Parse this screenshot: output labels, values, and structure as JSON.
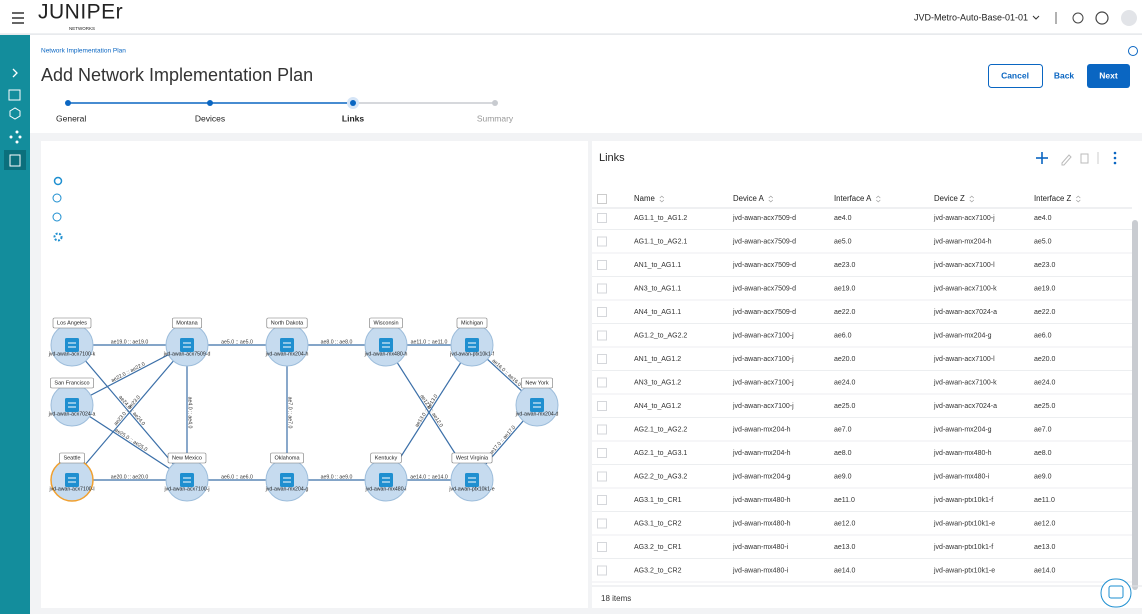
{
  "header": {
    "logo": "JUNIPEr",
    "logo_sub": "NETWORKS",
    "org": "JVD-Metro-Auto-Base-01-01"
  },
  "breadcrumb": "Network Implementation Plan",
  "title": "Add Network Implementation Plan",
  "buttons": {
    "cancel": "Cancel",
    "back": "Back",
    "next": "Next"
  },
  "steps": [
    "General",
    "Devices",
    "Links",
    "Summary"
  ],
  "topology": {
    "nodes": [
      {
        "site": "Los Angeles",
        "device": "jvd-awan-acx7100-k"
      },
      {
        "site": "Montana",
        "device": "jvd-awan-acx7509-d"
      },
      {
        "site": "North Dakota",
        "device": "jvd-awan-mx204-h"
      },
      {
        "site": "Wisconsin",
        "device": "jvd-awan-mx480-h"
      },
      {
        "site": "Michigan",
        "device": "jvd-awan-ptx10k1-f"
      },
      {
        "site": "New York",
        "device": "jvd-awan-mx204-d"
      },
      {
        "site": "San Francisco",
        "device": "jvd-awan-acx7024-a"
      },
      {
        "site": "Seattle",
        "device": "jvd-awan-acx7100-l"
      },
      {
        "site": "New Mexico",
        "device": "jvd-awan-acx7100-j"
      },
      {
        "site": "Oklahoma",
        "device": "jvd-awan-mx204-g"
      },
      {
        "site": "Kentucky",
        "device": "jvd-awan-mx480-i"
      },
      {
        "site": "West Virginia",
        "device": "jvd-awan-ptx10k1-e"
      }
    ],
    "links": [
      {
        "label": "ae19.0 :: ae19.0"
      },
      {
        "label": "ae5.0 :: ae5.0"
      },
      {
        "label": "ae8.0 :: ae8.0"
      },
      {
        "label": "ae11.0 :: ae11.0"
      },
      {
        "label": "ae16.0 :: ae16.0"
      },
      {
        "label": "ae22.0 :: ae22.0"
      },
      {
        "label": "ae23.0 :: ae23.0"
      },
      {
        "label": "ae24.0 :: ae24.0"
      },
      {
        "label": "ae25.0 :: ae25.0"
      },
      {
        "label": "ae4.0 :: ae4.0"
      },
      {
        "label": "ae7.0 :: ae7.0"
      },
      {
        "label": "ae20.0 :: ae20.0"
      },
      {
        "label": "ae6.0 :: ae6.0"
      },
      {
        "label": "ae9.0 :: ae9.0"
      },
      {
        "label": "ae14.0 :: ae14.0"
      },
      {
        "label": "ae12.0 :: ae12.0"
      },
      {
        "label": "ae13.0 :: ae13.0"
      },
      {
        "label": "ae17.0 :: ae17.0"
      }
    ]
  },
  "table": {
    "title": "Links",
    "columns": [
      "Name",
      "Device A",
      "Interface A",
      "Device Z",
      "Interface Z"
    ],
    "rows": [
      [
        "AG1.1_to_AG1.2",
        "jvd-awan-acx7509-d",
        "ae4.0",
        "jvd-awan-acx7100-j",
        "ae4.0"
      ],
      [
        "AG1.1_to_AG2.1",
        "jvd-awan-acx7509-d",
        "ae5.0",
        "jvd-awan-mx204-h",
        "ae5.0"
      ],
      [
        "AN1_to_AG1.1",
        "jvd-awan-acx7509-d",
        "ae23.0",
        "jvd-awan-acx7100-l",
        "ae23.0"
      ],
      [
        "AN3_to_AG1.1",
        "jvd-awan-acx7509-d",
        "ae19.0",
        "jvd-awan-acx7100-k",
        "ae19.0"
      ],
      [
        "AN4_to_AG1.1",
        "jvd-awan-acx7509-d",
        "ae22.0",
        "jvd-awan-acx7024-a",
        "ae22.0"
      ],
      [
        "AG1.2_to_AG2.2",
        "jvd-awan-acx7100-j",
        "ae6.0",
        "jvd-awan-mx204-g",
        "ae6.0"
      ],
      [
        "AN1_to_AG1.2",
        "jvd-awan-acx7100-j",
        "ae20.0",
        "jvd-awan-acx7100-l",
        "ae20.0"
      ],
      [
        "AN3_to_AG1.2",
        "jvd-awan-acx7100-j",
        "ae24.0",
        "jvd-awan-acx7100-k",
        "ae24.0"
      ],
      [
        "AN4_to_AG1.2",
        "jvd-awan-acx7100-j",
        "ae25.0",
        "jvd-awan-acx7024-a",
        "ae25.0"
      ],
      [
        "AG2.1_to_AG2.2",
        "jvd-awan-mx204-h",
        "ae7.0",
        "jvd-awan-mx204-g",
        "ae7.0"
      ],
      [
        "AG2.1_to_AG3.1",
        "jvd-awan-mx204-h",
        "ae8.0",
        "jvd-awan-mx480-h",
        "ae8.0"
      ],
      [
        "AG2.2_to_AG3.2",
        "jvd-awan-mx204-g",
        "ae9.0",
        "jvd-awan-mx480-i",
        "ae9.0"
      ],
      [
        "AG3.1_to_CR1",
        "jvd-awan-mx480-h",
        "ae11.0",
        "jvd-awan-ptx10k1-f",
        "ae11.0"
      ],
      [
        "AG3.1_to_CR2",
        "jvd-awan-mx480-h",
        "ae12.0",
        "jvd-awan-ptx10k1-e",
        "ae12.0"
      ],
      [
        "AG3.2_to_CR1",
        "jvd-awan-mx480-i",
        "ae13.0",
        "jvd-awan-ptx10k1-f",
        "ae13.0"
      ],
      [
        "AG3.2_to_CR2",
        "jvd-awan-mx480-i",
        "ae14.0",
        "jvd-awan-ptx10k1-e",
        "ae14.0"
      ]
    ],
    "footer": "18 items"
  }
}
